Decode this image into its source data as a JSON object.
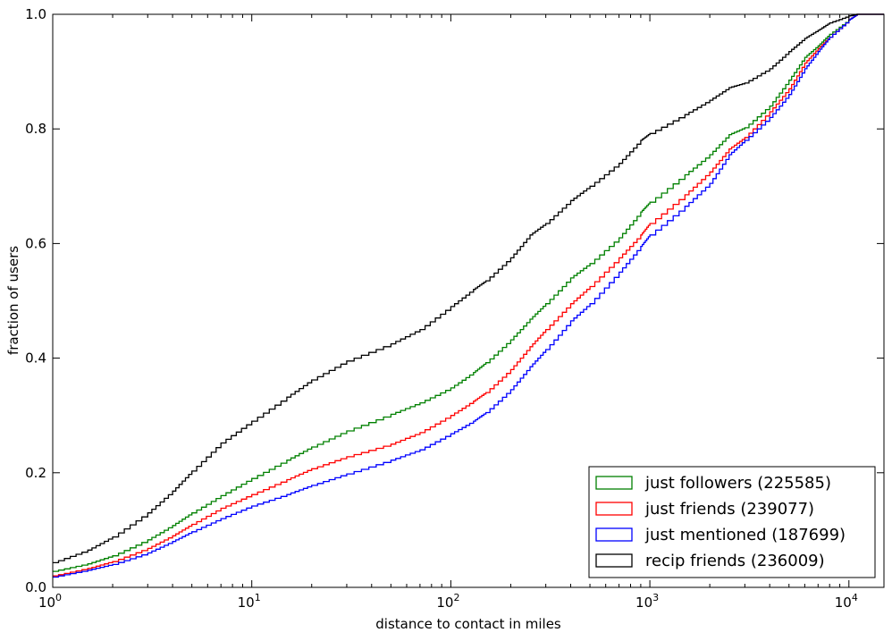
{
  "chart_data": {
    "type": "line",
    "title": "",
    "xlabel": "distance to contact in miles",
    "ylabel": "fraction of users",
    "xscale": "log",
    "xlim": [
      1,
      15000
    ],
    "ylim": [
      0.0,
      1.0
    ],
    "x_ticks": [
      {
        "value": 1,
        "base": "10",
        "exp": "0"
      },
      {
        "value": 10,
        "base": "10",
        "exp": "1"
      },
      {
        "value": 100,
        "base": "10",
        "exp": "2"
      },
      {
        "value": 1000,
        "base": "10",
        "exp": "3"
      },
      {
        "value": 10000,
        "base": "10",
        "exp": "4"
      }
    ],
    "y_ticks": [
      {
        "value": 0.0,
        "label": "0.0"
      },
      {
        "value": 0.2,
        "label": "0.2"
      },
      {
        "value": 0.4,
        "label": "0.4"
      },
      {
        "value": 0.6,
        "label": "0.6"
      },
      {
        "value": 0.8,
        "label": "0.8"
      },
      {
        "value": 1.0,
        "label": "1.0"
      }
    ],
    "grid": false,
    "legend_position": "bottom-right",
    "series": [
      {
        "name": "just followers (225585)",
        "color": "#008000",
        "points": [
          [
            1,
            0.028
          ],
          [
            1.5,
            0.041
          ],
          [
            2,
            0.055
          ],
          [
            3,
            0.083
          ],
          [
            4,
            0.108
          ],
          [
            5,
            0.13
          ],
          [
            7,
            0.16
          ],
          [
            10,
            0.19
          ],
          [
            15,
            0.222
          ],
          [
            20,
            0.245
          ],
          [
            30,
            0.273
          ],
          [
            50,
            0.302
          ],
          [
            70,
            0.322
          ],
          [
            100,
            0.348
          ],
          [
            130,
            0.375
          ],
          [
            150,
            0.392
          ],
          [
            200,
            0.432
          ],
          [
            250,
            0.468
          ],
          [
            300,
            0.495
          ],
          [
            400,
            0.54
          ],
          [
            500,
            0.565
          ],
          [
            700,
            0.61
          ],
          [
            900,
            0.655
          ],
          [
            1000,
            0.672
          ],
          [
            1500,
            0.72
          ],
          [
            2000,
            0.755
          ],
          [
            2500,
            0.79
          ],
          [
            3000,
            0.802
          ],
          [
            4000,
            0.84
          ],
          [
            5000,
            0.885
          ],
          [
            6000,
            0.925
          ],
          [
            7000,
            0.945
          ],
          [
            8000,
            0.965
          ],
          [
            10000,
            0.99
          ],
          [
            11000,
            1.0
          ],
          [
            15000,
            1.0
          ]
        ]
      },
      {
        "name": "just friends (239077)",
        "color": "#ff0000",
        "points": [
          [
            1,
            0.02
          ],
          [
            1.5,
            0.033
          ],
          [
            2,
            0.045
          ],
          [
            3,
            0.068
          ],
          [
            4,
            0.09
          ],
          [
            5,
            0.11
          ],
          [
            7,
            0.138
          ],
          [
            10,
            0.162
          ],
          [
            15,
            0.188
          ],
          [
            20,
            0.207
          ],
          [
            30,
            0.228
          ],
          [
            50,
            0.25
          ],
          [
            70,
            0.27
          ],
          [
            100,
            0.3
          ],
          [
            130,
            0.325
          ],
          [
            150,
            0.34
          ],
          [
            200,
            0.38
          ],
          [
            250,
            0.42
          ],
          [
            300,
            0.45
          ],
          [
            400,
            0.495
          ],
          [
            500,
            0.525
          ],
          [
            700,
            0.575
          ],
          [
            900,
            0.615
          ],
          [
            1000,
            0.635
          ],
          [
            1500,
            0.685
          ],
          [
            2000,
            0.725
          ],
          [
            2500,
            0.765
          ],
          [
            3000,
            0.785
          ],
          [
            4000,
            0.83
          ],
          [
            5000,
            0.87
          ],
          [
            6000,
            0.915
          ],
          [
            7000,
            0.94
          ],
          [
            8000,
            0.96
          ],
          [
            10000,
            0.99
          ],
          [
            11000,
            1.0
          ],
          [
            15000,
            1.0
          ]
        ]
      },
      {
        "name": "just mentioned (187699)",
        "color": "#0000ff",
        "points": [
          [
            1,
            0.018
          ],
          [
            1.5,
            0.03
          ],
          [
            2,
            0.04
          ],
          [
            3,
            0.06
          ],
          [
            4,
            0.08
          ],
          [
            5,
            0.097
          ],
          [
            7,
            0.12
          ],
          [
            10,
            0.142
          ],
          [
            15,
            0.162
          ],
          [
            20,
            0.178
          ],
          [
            30,
            0.198
          ],
          [
            50,
            0.222
          ],
          [
            70,
            0.24
          ],
          [
            100,
            0.268
          ],
          [
            130,
            0.29
          ],
          [
            150,
            0.305
          ],
          [
            200,
            0.345
          ],
          [
            250,
            0.385
          ],
          [
            300,
            0.415
          ],
          [
            400,
            0.465
          ],
          [
            500,
            0.495
          ],
          [
            700,
            0.55
          ],
          [
            900,
            0.595
          ],
          [
            1000,
            0.615
          ],
          [
            1500,
            0.665
          ],
          [
            2000,
            0.705
          ],
          [
            2500,
            0.755
          ],
          [
            3000,
            0.78
          ],
          [
            4000,
            0.82
          ],
          [
            5000,
            0.86
          ],
          [
            6000,
            0.905
          ],
          [
            7000,
            0.935
          ],
          [
            8000,
            0.96
          ],
          [
            10000,
            0.99
          ],
          [
            11000,
            1.0
          ],
          [
            15000,
            1.0
          ]
        ]
      },
      {
        "name": "recip friends (236009)",
        "color": "#000000",
        "points": [
          [
            1,
            0.043
          ],
          [
            1.5,
            0.065
          ],
          [
            2,
            0.088
          ],
          [
            3,
            0.13
          ],
          [
            4,
            0.168
          ],
          [
            5,
            0.203
          ],
          [
            7,
            0.252
          ],
          [
            10,
            0.29
          ],
          [
            15,
            0.332
          ],
          [
            20,
            0.362
          ],
          [
            30,
            0.395
          ],
          [
            50,
            0.425
          ],
          [
            70,
            0.45
          ],
          [
            100,
            0.49
          ],
          [
            130,
            0.52
          ],
          [
            150,
            0.535
          ],
          [
            200,
            0.575
          ],
          [
            250,
            0.615
          ],
          [
            300,
            0.635
          ],
          [
            400,
            0.675
          ],
          [
            500,
            0.7
          ],
          [
            700,
            0.74
          ],
          [
            900,
            0.78
          ],
          [
            1000,
            0.792
          ],
          [
            1500,
            0.825
          ],
          [
            2000,
            0.85
          ],
          [
            2500,
            0.872
          ],
          [
            3000,
            0.88
          ],
          [
            4000,
            0.905
          ],
          [
            5000,
            0.935
          ],
          [
            6000,
            0.958
          ],
          [
            7000,
            0.972
          ],
          [
            8000,
            0.985
          ],
          [
            10000,
            0.997
          ],
          [
            11000,
            1.0
          ],
          [
            15000,
            1.0
          ]
        ]
      }
    ]
  }
}
